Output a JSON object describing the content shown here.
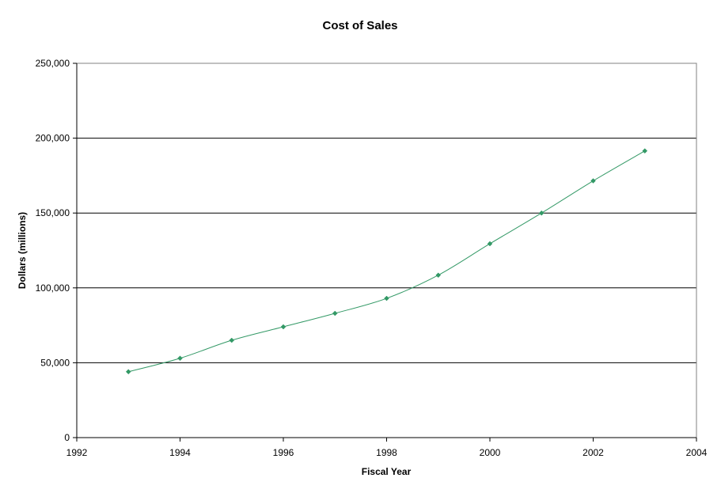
{
  "chart_data": {
    "type": "scatter",
    "title": "Cost of Sales",
    "xlabel": "Fiscal Year",
    "ylabel": "Dollars (millions)",
    "xlim": [
      1992,
      2004
    ],
    "ylim": [
      0,
      250000
    ],
    "x_ticks": [
      1992,
      1994,
      1996,
      1998,
      2000,
      2002,
      2004
    ],
    "y_ticks": [
      0,
      50000,
      100000,
      150000,
      200000,
      250000
    ],
    "x_tick_labels": [
      "1992",
      "1994",
      "1996",
      "1998",
      "2000",
      "2002",
      "2004"
    ],
    "y_tick_labels": [
      "0",
      "50,000",
      "100,000",
      "150,000",
      "200,000",
      "250,000"
    ],
    "grid": "horizontal major gridlines",
    "series": [
      {
        "color": "#339966",
        "marker": "diamond",
        "line": "smoothed",
        "points": [
          {
            "x": 1993,
            "y": 44000
          },
          {
            "x": 1994,
            "y": 53000
          },
          {
            "x": 1995,
            "y": 65000
          },
          {
            "x": 1996,
            "y": 74000
          },
          {
            "x": 1997,
            "y": 83000
          },
          {
            "x": 1998,
            "y": 93000
          },
          {
            "x": 1999,
            "y": 108500
          },
          {
            "x": 2000,
            "y": 129500
          },
          {
            "x": 2001,
            "y": 150000
          },
          {
            "x": 2002,
            "y": 171500
          },
          {
            "x": 2003,
            "y": 191500
          }
        ]
      }
    ]
  }
}
